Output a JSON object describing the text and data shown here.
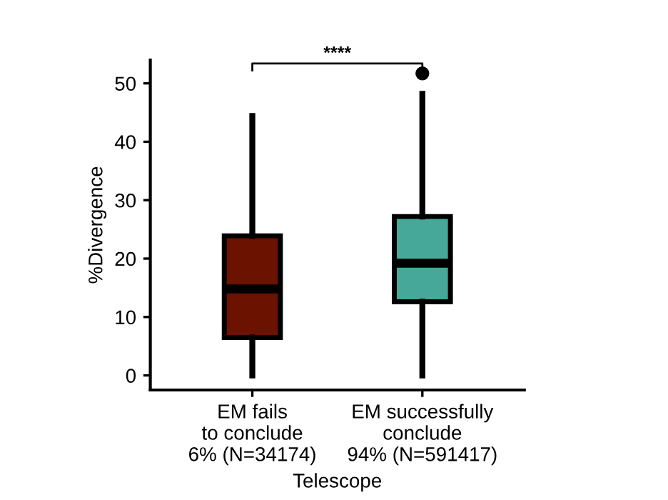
{
  "chart_data": {
    "type": "box",
    "categories": [
      "EM fails\nto conclude\n6% (N=34174)",
      "EM successfully\nconclude\n94% (N=591417)"
    ],
    "boxes": [
      {
        "low": 0,
        "q1": 6.5,
        "median": 14.8,
        "q3": 23.9,
        "high": 44.4
      },
      {
        "low": 0,
        "q1": 12.6,
        "median": 19.2,
        "q3": 27.2,
        "high": 48.2,
        "outliers": [
          51.7
        ]
      }
    ],
    "colors": [
      "#6b1200",
      "#45a898"
    ],
    "xlabel": "Telescope",
    "ylabel": "%Divergence",
    "ylim": [
      -2.5,
      54
    ],
    "yticks": [
      0,
      10,
      20,
      30,
      40,
      50
    ],
    "annotations": [
      "****"
    ],
    "grid": false,
    "legend": false
  }
}
